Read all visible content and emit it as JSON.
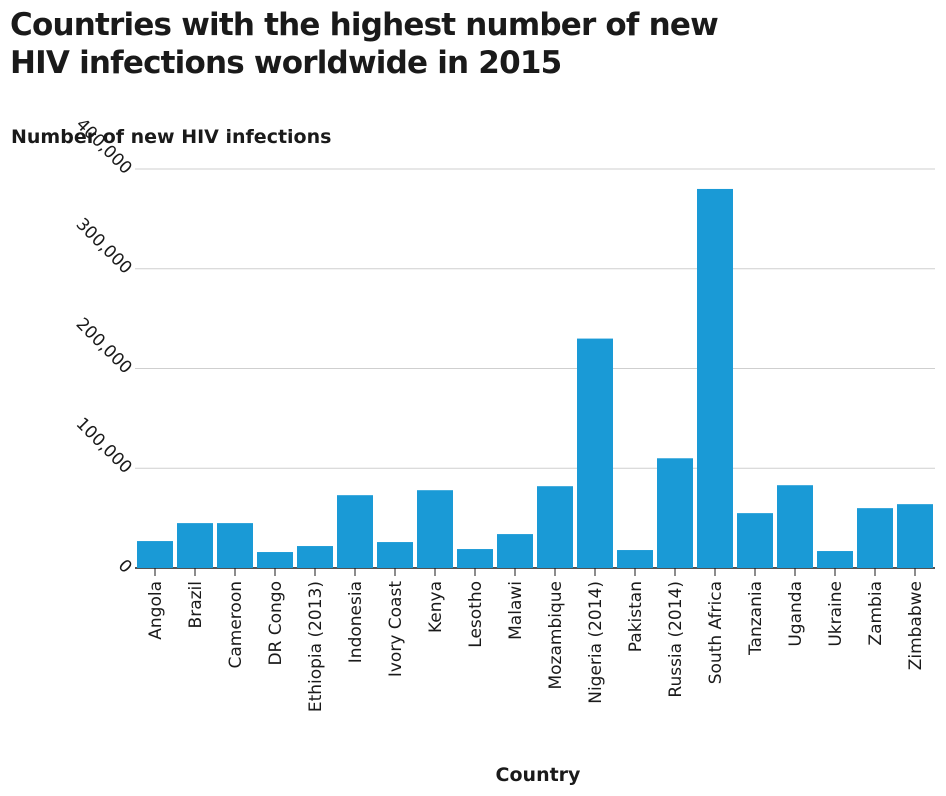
{
  "chart_data": {
    "type": "bar",
    "title_lines": [
      "Countries with the highest number of new",
      "HIV infections worldwide in 2015"
    ],
    "xlabel": "Country",
    "ylabel": "Number of new HIV infections",
    "ylim": [
      0,
      400000
    ],
    "yticks": [
      0,
      100000,
      200000,
      300000,
      400000
    ],
    "ytick_labels": [
      "0",
      "100,000",
      "200,000",
      "300,000",
      "400,000"
    ],
    "grid": true,
    "bar_color": "#1a9ad6",
    "categories": [
      "Angola",
      "Brazil",
      "Cameroon",
      "DR Congo",
      "Ethiopia (2013)",
      "Indonesia",
      "Ivory Coast",
      "Kenya",
      "Lesotho",
      "Malawi",
      "Mozambique",
      "Nigeria (2014)",
      "Pakistan",
      "Russia (2014)",
      "South Africa",
      "Tanzania",
      "Uganda",
      "Ukraine",
      "Zambia",
      "Zimbabwe"
    ],
    "values": [
      27000,
      45000,
      45000,
      16000,
      22000,
      73000,
      26000,
      78000,
      19000,
      34000,
      82000,
      230000,
      18000,
      110000,
      380000,
      55000,
      83000,
      17000,
      60000,
      64000
    ]
  }
}
